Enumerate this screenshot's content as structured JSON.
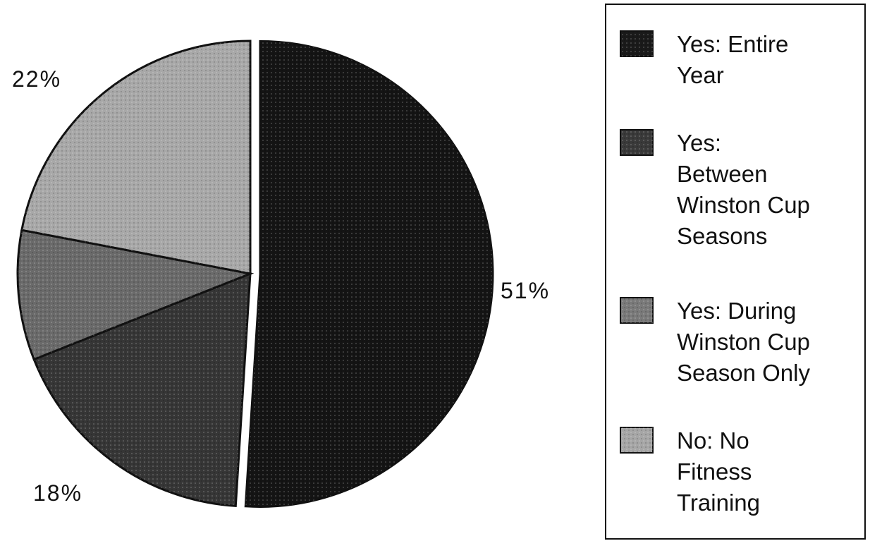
{
  "chart_data": {
    "type": "pie",
    "title": "",
    "categories": [
      "Yes: Entire Year",
      "Yes: Between Winston Cup Seasons",
      "Yes: During Winston Cup Season Only",
      "No: No Fitness Training"
    ],
    "values": [
      51,
      18,
      9,
      22
    ],
    "data_labels": [
      "51%",
      "18%",
      "",
      "22%"
    ],
    "legend": {
      "placement": "right",
      "entries": [
        {
          "lines": [
            "Yes:  Entire",
            "Year"
          ]
        },
        {
          "lines": [
            "Yes:",
            "Between",
            "Winston Cup",
            "Seasons"
          ]
        },
        {
          "lines": [
            "Yes:  During",
            "Winston Cup",
            "Season Only"
          ]
        },
        {
          "lines": [
            "No: No",
            "Fitness",
            "Training"
          ]
        }
      ]
    },
    "colors": [
      "#141414",
      "#363636",
      "#6a6a6a",
      "#a8a8a8"
    ],
    "exploded_slice": "Yes: Entire Year"
  }
}
